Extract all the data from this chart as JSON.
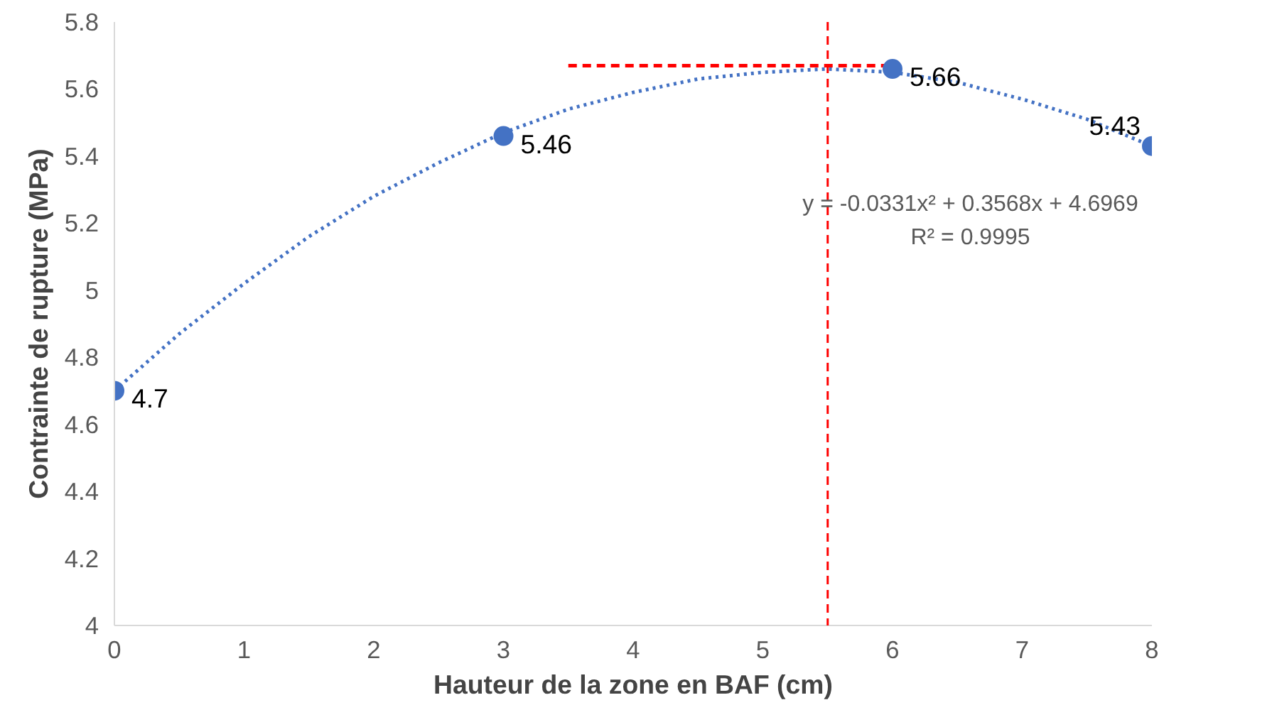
{
  "chart_data": {
    "type": "scatter",
    "xlabel": "Hauteur de la zone en BAF (cm)",
    "ylabel": "Contrainte de rupture (MPa)",
    "xlim": [
      0,
      8
    ],
    "ylim": [
      4,
      5.8
    ],
    "xticks": [
      0,
      1,
      2,
      3,
      4,
      5,
      6,
      7,
      8
    ],
    "yticks": [
      4,
      4.2,
      4.4,
      4.6,
      4.8,
      5,
      5.2,
      5.4,
      5.6,
      5.8
    ],
    "grid": false,
    "series": [
      {
        "type": "line",
        "line_style": "dotted",
        "marker": "none",
        "color": "#4472c4",
        "x": [
          0,
          0.5,
          1,
          1.5,
          2,
          2.5,
          3,
          3.5,
          4,
          4.5,
          5,
          5.5,
          6,
          6.5,
          7,
          7.5,
          8
        ],
        "values": [
          4.7,
          4.87,
          5.02,
          5.16,
          5.28,
          5.38,
          5.47,
          5.54,
          5.59,
          5.63,
          5.65,
          5.66,
          5.65,
          5.62,
          5.57,
          5.51,
          5.43
        ]
      },
      {
        "type": "line",
        "line_style": "dashed",
        "marker": "none",
        "color": "#ff0000",
        "x": [
          3.5,
          6
        ],
        "values": [
          5.67,
          5.67
        ]
      },
      {
        "marker": "circle",
        "color": "#4472c4",
        "x": [
          0,
          3,
          6,
          8
        ],
        "values": [
          4.7,
          5.46,
          5.66,
          5.43
        ],
        "value_labels": [
          "4.7",
          "5.46",
          "5.66",
          "5.43"
        ]
      }
    ],
    "ref_lines": [
      {
        "axis": "x",
        "value": 5.5,
        "color": "#ff0000",
        "line_style": "dashed"
      }
    ],
    "annotations": [
      "y = -0.0331x² + 0.3568x + 4.6969",
      "R² = 0.9995"
    ]
  }
}
